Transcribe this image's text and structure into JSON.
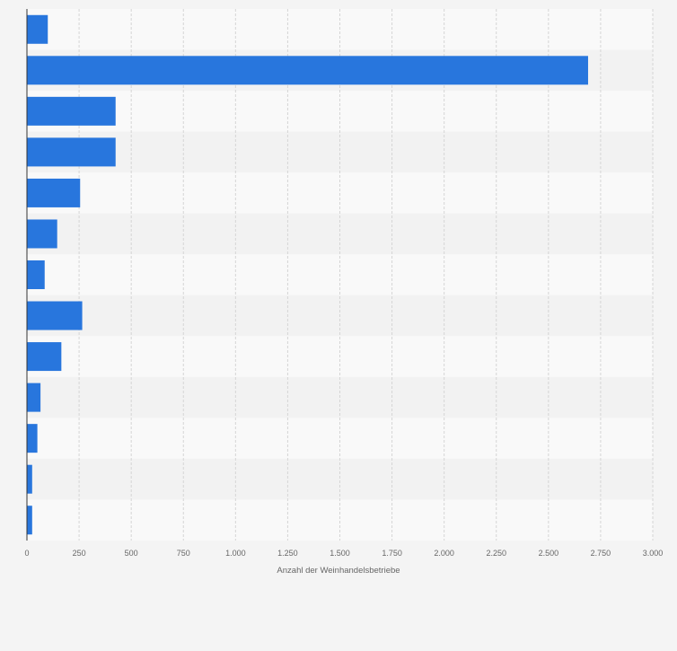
{
  "chart_data": {
    "type": "bar",
    "orientation": "horizontal",
    "categories": [
      "",
      "",
      "",
      "",
      "",
      "",
      "",
      "",
      "",
      "",
      "",
      "",
      ""
    ],
    "values": [
      100,
      2690,
      425,
      425,
      255,
      145,
      85,
      265,
      165,
      65,
      50,
      25,
      25
    ],
    "xlabel": "Anzahl der Weinhandelsbetriebe",
    "ylabel": "",
    "xlim": [
      0,
      3000
    ],
    "x_ticks": [
      0,
      250,
      500,
      750,
      1000,
      1250,
      1500,
      1750,
      2000,
      2250,
      2500,
      2750,
      3000
    ],
    "x_tick_labels": [
      "0",
      "250",
      "500",
      "750",
      "1.000",
      "1.250",
      "1.500",
      "1.750",
      "2.000",
      "2.250",
      "2.500",
      "2.750",
      "3.000"
    ],
    "grid": true,
    "legend": "none",
    "colors": {
      "bar": "#2876dd",
      "band_light": "#f9f9f9",
      "band_dark": "#f2f2f2",
      "grid": "#d5d5d5",
      "axis": "#333333",
      "text": "#666666"
    }
  }
}
